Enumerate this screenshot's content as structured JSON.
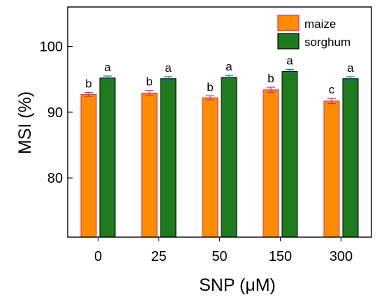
{
  "chart_data": {
    "type": "bar",
    "title": "",
    "xlabel": "SNP  (μM)",
    "ylabel": "MSI (%)",
    "categories": [
      "0",
      "25",
      "50",
      "150",
      "300"
    ],
    "ylim": [
      71,
      106
    ],
    "yticks": [
      80,
      90,
      100
    ],
    "grid": false,
    "legend_position": "top-right",
    "series": [
      {
        "name": "maize",
        "color": "#FF8C00",
        "values": [
          92.7,
          92.9,
          92.2,
          93.4,
          91.7
        ],
        "errors": [
          0.3,
          0.4,
          0.3,
          0.4,
          0.4
        ],
        "letters": [
          "b",
          "b",
          "b",
          "b",
          "c"
        ]
      },
      {
        "name": "sorghum",
        "color": "#1E7B1E",
        "values": [
          95.2,
          95.1,
          95.3,
          96.2,
          95.1
        ],
        "errors": [
          0.3,
          0.3,
          0.3,
          0.3,
          0.3
        ],
        "letters": [
          "a",
          "a",
          "a",
          "a",
          "a"
        ]
      }
    ]
  }
}
